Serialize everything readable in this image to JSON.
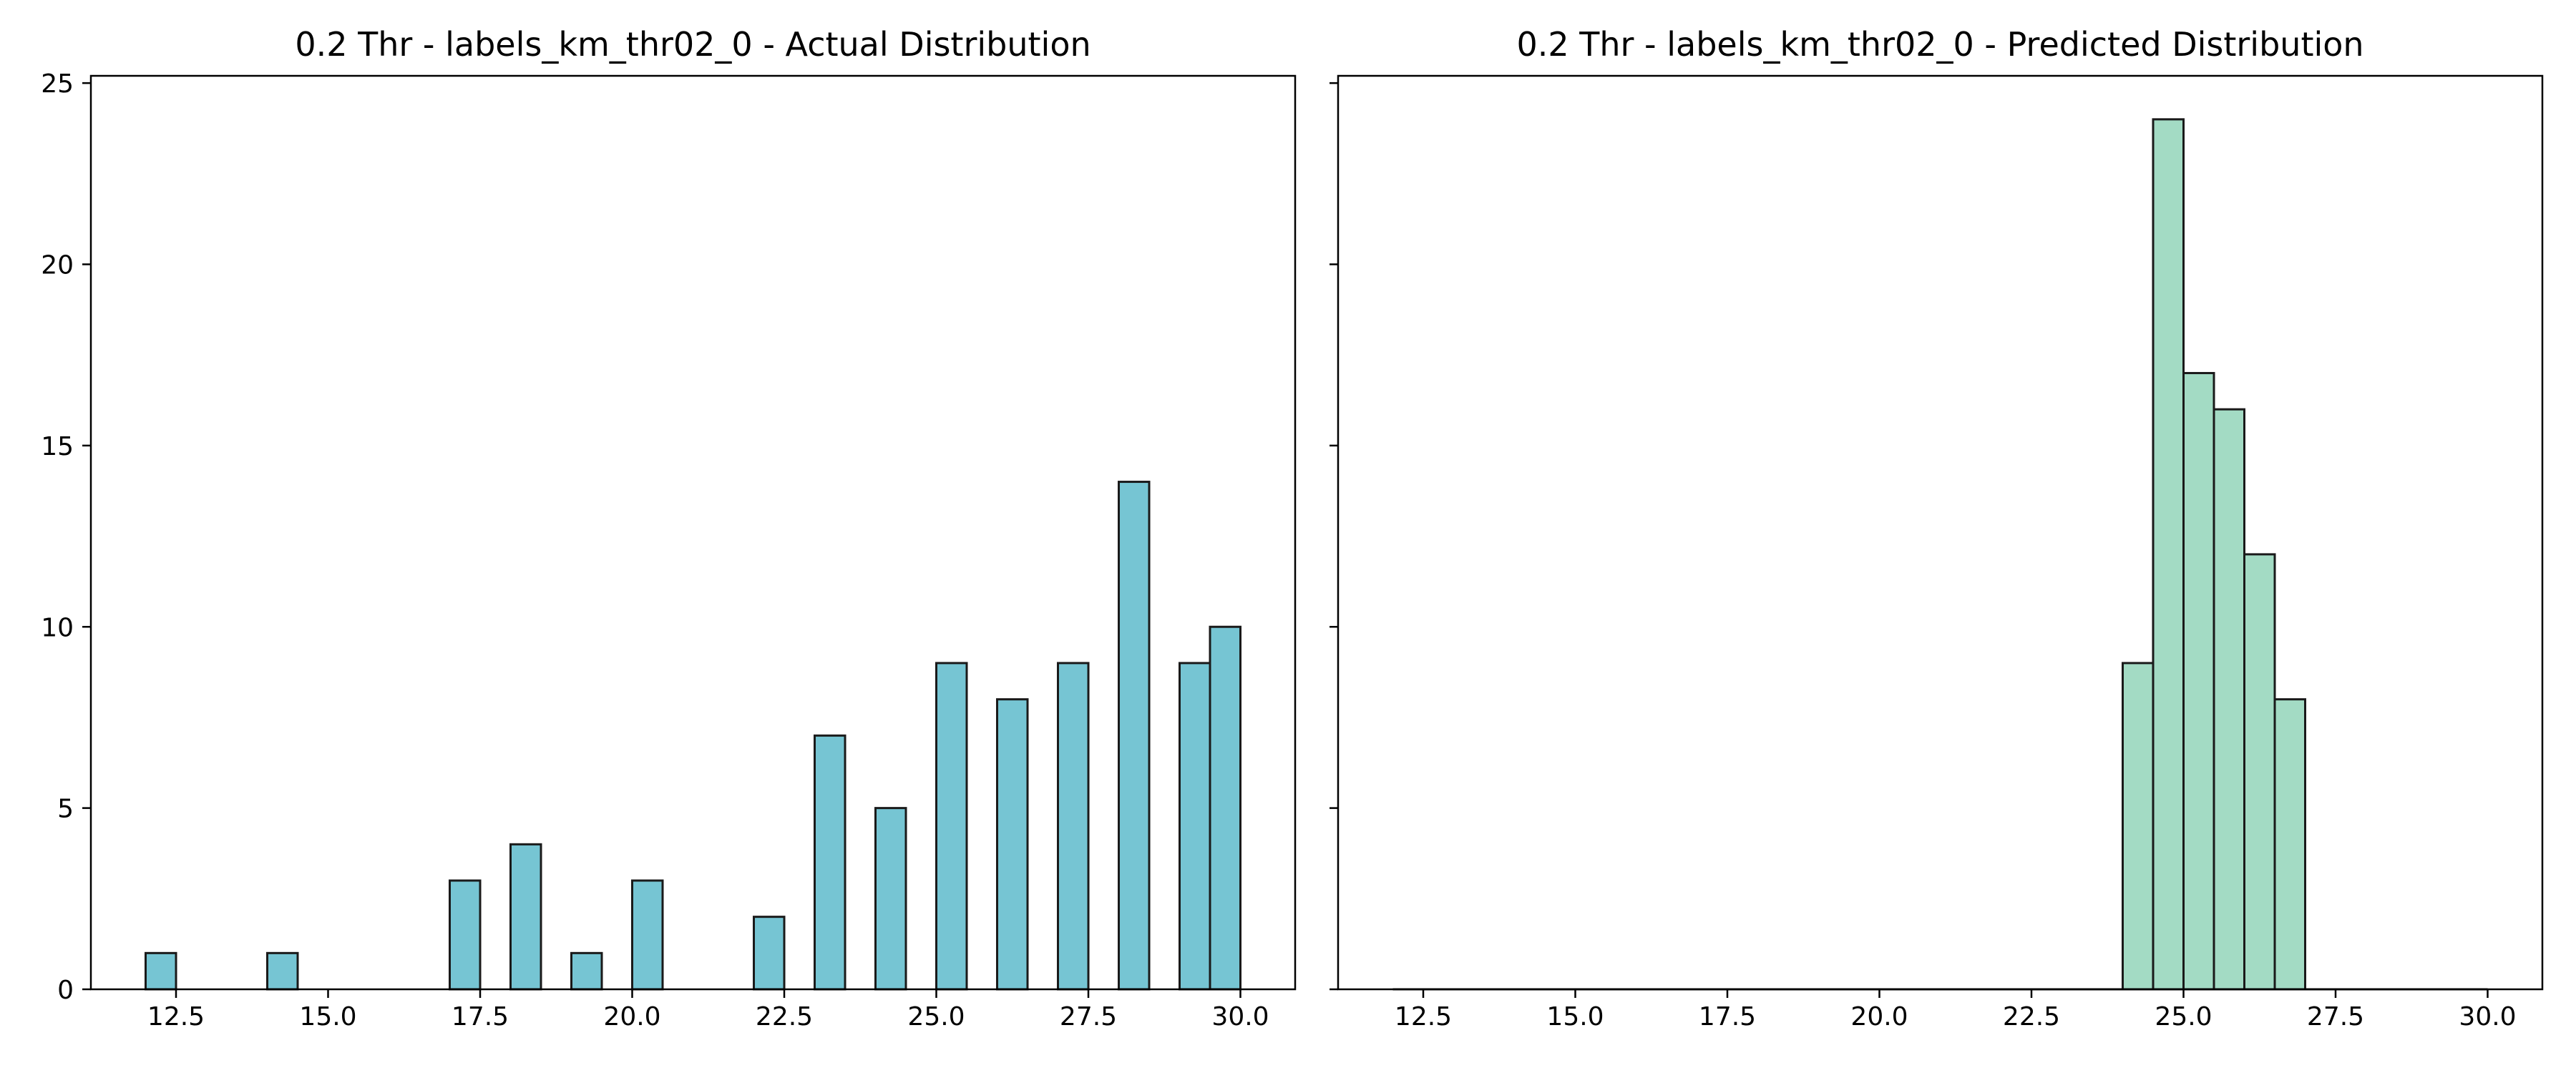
{
  "chart_data": [
    {
      "type": "bar",
      "title": "0.2 Thr - labels_km_thr02_0 - Actual Distribution",
      "xlabel": "",
      "ylabel": "",
      "xlim": [
        11.1,
        30.9
      ],
      "ylim": [
        0,
        25.2
      ],
      "xticks": [
        "12.5",
        "15.0",
        "17.5",
        "20.0",
        "22.5",
        "25.0",
        "27.5",
        "30.0"
      ],
      "yticks": [
        "0",
        "5",
        "10",
        "15",
        "20",
        "25"
      ],
      "grid": false,
      "bar_color": "#76c5d3",
      "bars": [
        {
          "x0": 12.0,
          "x1": 12.5,
          "count": 1
        },
        {
          "x0": 14.0,
          "x1": 14.5,
          "count": 1
        },
        {
          "x0": 17.0,
          "x1": 17.5,
          "count": 3
        },
        {
          "x0": 18.0,
          "x1": 18.5,
          "count": 4
        },
        {
          "x0": 19.0,
          "x1": 19.5,
          "count": 1
        },
        {
          "x0": 20.0,
          "x1": 20.5,
          "count": 3
        },
        {
          "x0": 22.0,
          "x1": 22.5,
          "count": 2
        },
        {
          "x0": 23.0,
          "x1": 23.5,
          "count": 7
        },
        {
          "x0": 24.0,
          "x1": 24.5,
          "count": 5
        },
        {
          "x0": 25.0,
          "x1": 25.5,
          "count": 9
        },
        {
          "x0": 26.0,
          "x1": 26.5,
          "count": 8
        },
        {
          "x0": 27.0,
          "x1": 27.5,
          "count": 9
        },
        {
          "x0": 28.0,
          "x1": 28.5,
          "count": 14
        },
        {
          "x0": 29.0,
          "x1": 29.5,
          "count": 9
        },
        {
          "x0": 29.5,
          "x1": 30.0,
          "count": 10
        }
      ]
    },
    {
      "type": "bar",
      "title": "0.2 Thr - labels_km_thr02_0 - Predicted Distribution",
      "xlabel": "",
      "ylabel": "",
      "xlim": [
        11.1,
        30.9
      ],
      "ylim": [
        0,
        25.2
      ],
      "xticks": [
        "12.5",
        "15.0",
        "17.5",
        "20.0",
        "22.5",
        "25.0",
        "27.5",
        "30.0"
      ],
      "yticks": [],
      "grid": false,
      "bar_color": "#a3dbc4",
      "baseline_range": [
        12.0,
        30.0
      ],
      "bars": [
        {
          "x0": 24.0,
          "x1": 24.5,
          "count": 9
        },
        {
          "x0": 24.5,
          "x1": 25.0,
          "count": 24
        },
        {
          "x0": 25.0,
          "x1": 25.5,
          "count": 17
        },
        {
          "x0": 25.5,
          "x1": 26.0,
          "count": 16
        },
        {
          "x0": 26.0,
          "x1": 26.5,
          "count": 12
        },
        {
          "x0": 26.5,
          "x1": 27.0,
          "count": 8
        }
      ]
    }
  ]
}
